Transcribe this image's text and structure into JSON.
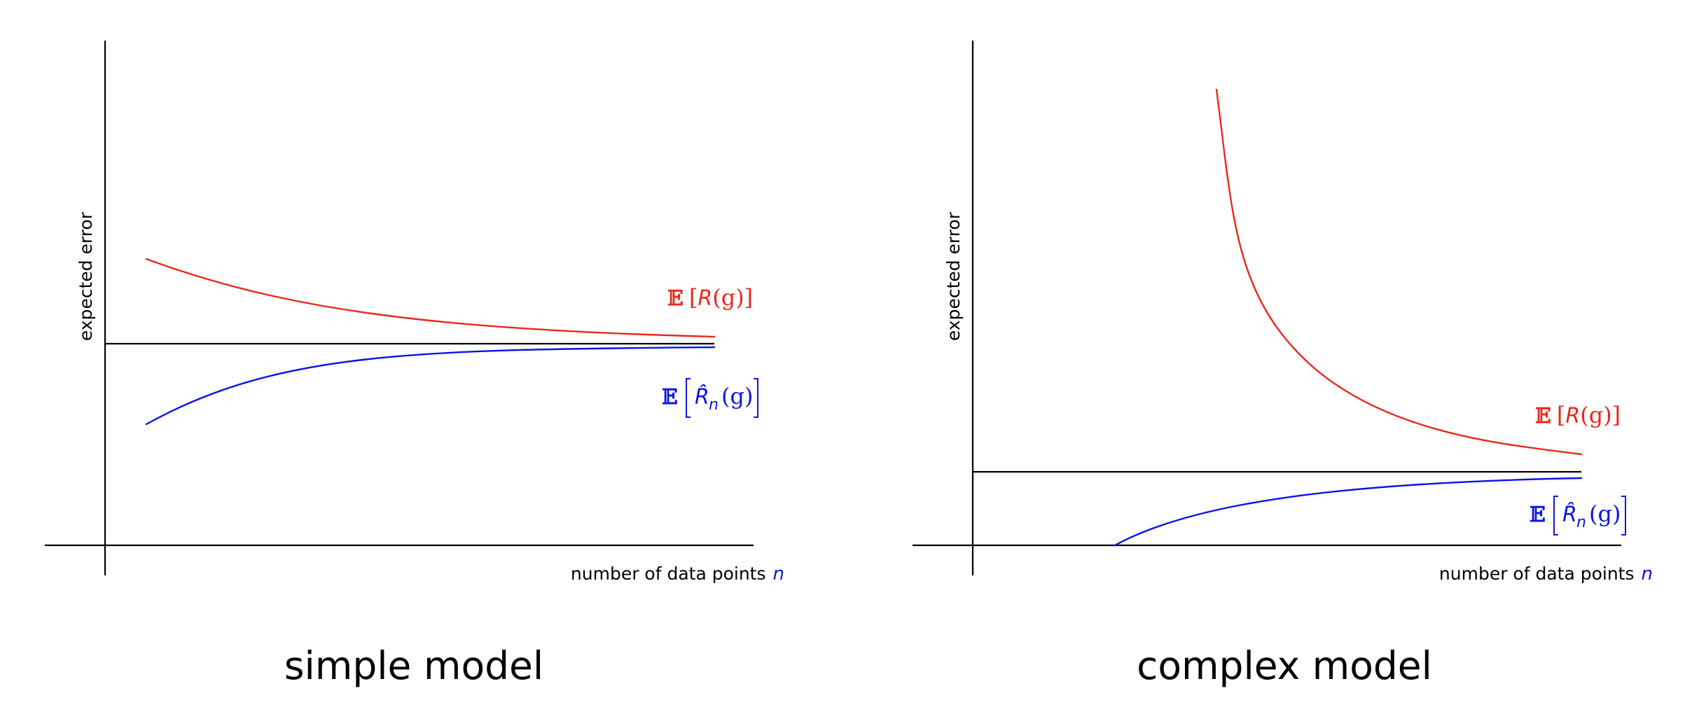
{
  "colors": {
    "true_risk": "#e8281e",
    "empirical_risk": "#0a14e6",
    "axes": "#000000"
  },
  "panels": [
    {
      "title": "simple model",
      "ylabel": "expected error",
      "xlabel": "number of data points",
      "xvar": "n",
      "true_risk_label": {
        "bb": "𝔼",
        "lb": "[",
        "var": "R",
        "args": "(g)",
        "rb": "]"
      },
      "empirical_risk_label": {
        "bb": "𝔼",
        "lb": "[",
        "var": "R̂",
        "sub": "n",
        "args": "(g)",
        "rb": "]"
      }
    },
    {
      "title": "complex model",
      "ylabel": "expected error",
      "xlabel": "number of data points",
      "xvar": "n",
      "true_risk_label": {
        "bb": "𝔼",
        "lb": "[",
        "var": "R",
        "args": "(g)",
        "rb": "]"
      },
      "empirical_risk_label": {
        "bb": "𝔼",
        "lb": "[",
        "var": "R̂",
        "sub": "n",
        "args": "(g)",
        "rb": "]"
      }
    }
  ]
}
